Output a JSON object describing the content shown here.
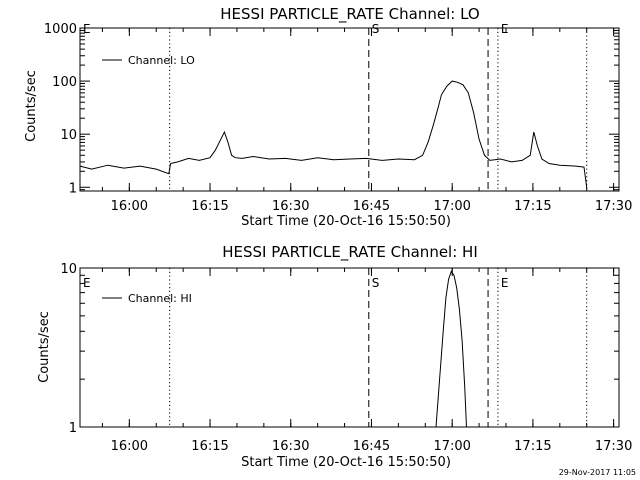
{
  "footer": "29-Nov-2017 11:05",
  "chart_data": [
    {
      "type": "line",
      "title": "HESSI PARTICLE_RATE Channel: LO",
      "xlabel": "Start Time (20-Oct-16 15:50:50)",
      "ylabel": "Counts/sec",
      "yscale": "log",
      "ylim": [
        0.85,
        1000
      ],
      "xlim": [
        "15:50:50",
        "17:31:00"
      ],
      "x_ticks": [
        "16:00",
        "16:15",
        "16:30",
        "16:45",
        "17:00",
        "17:15",
        "17:30"
      ],
      "y_ticks": [
        "1",
        "10",
        "100",
        "1000"
      ],
      "legend": "Channel: LO",
      "markers": [
        {
          "label": "E",
          "time": "15:50:50",
          "style": "dotted"
        },
        {
          "label": "",
          "time": "16:07:30",
          "style": "dotted"
        },
        {
          "label": "S",
          "time": "16:44:30",
          "style": "dashed"
        },
        {
          "label": "",
          "time": "17:06:40",
          "style": "dashed"
        },
        {
          "label": "E",
          "time": "17:08:30",
          "style": "dotted"
        },
        {
          "label": "",
          "time": "17:25:00",
          "style": "dotted"
        }
      ],
      "series": [
        {
          "x": [
            "15:50:50",
            "15:53:00",
            "15:56:00",
            "15:59:00",
            "16:02:00",
            "16:05:00",
            "16:07:20",
            "16:07:40",
            "16:09:00",
            "16:11:00",
            "16:13:00",
            "16:15:00",
            "16:16:00",
            "16:17:00",
            "16:17:40",
            "16:18:20",
            "16:19:00",
            "16:19:40",
            "16:21:00",
            "16:23:00",
            "16:26:00",
            "16:29:00",
            "16:32:00",
            "16:35:00",
            "16:38:00",
            "16:41:00",
            "16:44:00",
            "16:47:00",
            "16:50:00",
            "16:53:00",
            "16:54:30",
            "16:55:30",
            "16:56:30",
            "16:57:20",
            "16:58:00",
            "16:59:00",
            "17:00:00",
            "17:01:00",
            "17:02:00",
            "17:03:00",
            "17:04:00",
            "17:05:00",
            "17:06:00",
            "17:07:00",
            "17:09:00",
            "17:11:00",
            "17:13:00",
            "17:14:30",
            "17:15:10",
            "17:15:50",
            "17:16:40",
            "17:18:00",
            "17:20:00",
            "17:23:00",
            "17:24:30",
            "17:25:00"
          ],
          "y": [
            2.5,
            2.2,
            2.6,
            2.3,
            2.5,
            2.2,
            1.8,
            2.8,
            3.0,
            3.5,
            3.2,
            3.6,
            5,
            8,
            11,
            7,
            4,
            3.6,
            3.5,
            3.8,
            3.4,
            3.5,
            3.2,
            3.6,
            3.3,
            3.4,
            3.5,
            3.2,
            3.4,
            3.3,
            4,
            7,
            15,
            30,
            55,
            80,
            100,
            95,
            85,
            60,
            25,
            8,
            4,
            3.2,
            3.4,
            3.0,
            3.2,
            4,
            11,
            6,
            3.4,
            2.8,
            2.6,
            2.5,
            2.4,
            1.0
          ]
        }
      ]
    },
    {
      "type": "line",
      "title": "HESSI PARTICLE_RATE Channel: HI",
      "xlabel": "Start Time (20-Oct-16 15:50:50)",
      "ylabel": "Counts/sec",
      "yscale": "log",
      "ylim": [
        1,
        10
      ],
      "xlim": [
        "15:50:50",
        "17:31:00"
      ],
      "x_ticks": [
        "16:00",
        "16:15",
        "16:30",
        "16:45",
        "17:00",
        "17:15",
        "17:30"
      ],
      "y_ticks": [
        "1",
        "10"
      ],
      "legend": "Channel: HI",
      "markers": [
        {
          "label": "E",
          "time": "15:50:50",
          "style": "dotted"
        },
        {
          "label": "",
          "time": "16:07:30",
          "style": "dotted"
        },
        {
          "label": "S",
          "time": "16:44:30",
          "style": "dashed"
        },
        {
          "label": "",
          "time": "17:06:40",
          "style": "dashed"
        },
        {
          "label": "E",
          "time": "17:08:30",
          "style": "dotted"
        },
        {
          "label": "",
          "time": "17:25:00",
          "style": "dotted"
        }
      ],
      "series": [
        {
          "x": [
            "16:57:00",
            "16:57:40",
            "16:58:20",
            "16:58:50",
            "16:59:20",
            "16:59:50",
            "17:00:20",
            "17:00:50",
            "17:01:20",
            "17:01:50",
            "17:02:20",
            "17:02:40"
          ],
          "y": [
            1.0,
            2.0,
            4.0,
            6.5,
            8.5,
            9.5,
            9.0,
            7.5,
            5.5,
            3.5,
            1.8,
            1.0
          ]
        }
      ]
    }
  ]
}
